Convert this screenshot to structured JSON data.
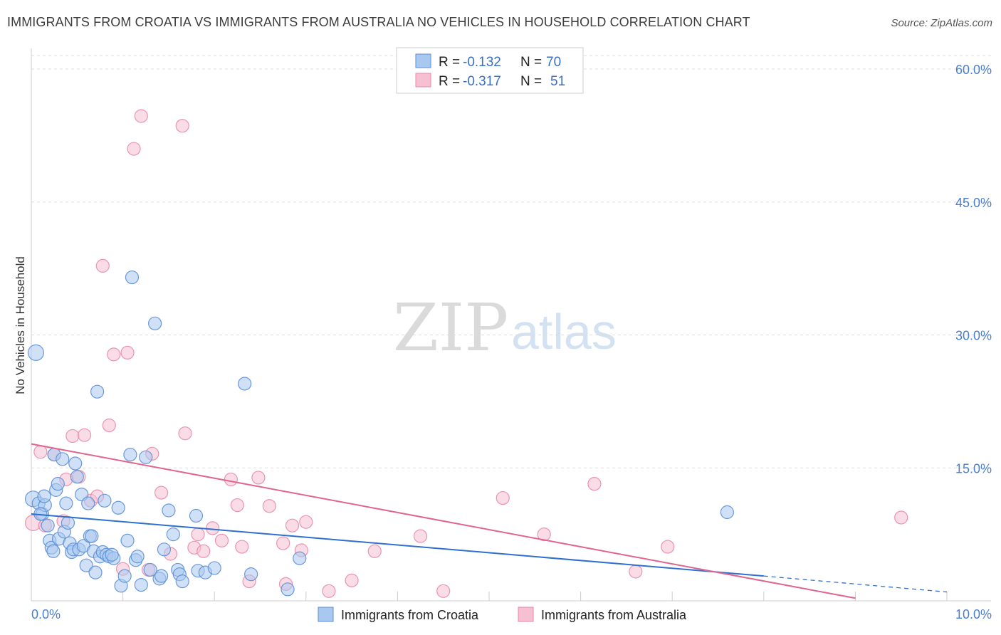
{
  "title": "IMMIGRANTS FROM CROATIA VS IMMIGRANTS FROM AUSTRALIA NO VEHICLES IN HOUSEHOLD CORRELATION CHART",
  "source": "Source: ZipAtlas.com",
  "watermark": {
    "zip": "ZIP",
    "atlas": "atlas"
  },
  "colors": {
    "croatia_fill": "#a9c8f0",
    "croatia_stroke": "#5b8fd6",
    "croatia_line": "#2e6fcf",
    "australia_fill": "#f6bfd2",
    "australia_stroke": "#e88aaa",
    "australia_line": "#e0648f",
    "grid": "#dddddd",
    "axis_text": "#4a7fd0"
  },
  "legend": {
    "croatia": {
      "r_label": "R =",
      "r_value": "-0.132",
      "n_label": "N =",
      "n_value": "70"
    },
    "australia": {
      "r_label": "R =",
      "r_value": "-0.317",
      "n_label": "N =",
      "n_value": "51"
    }
  },
  "bottom_legend": {
    "croatia": "Immigrants from Croatia",
    "australia": "Immigrants from Australia"
  },
  "chart_data": {
    "type": "scatter",
    "title": "IMMIGRANTS FROM CROATIA VS IMMIGRANTS FROM AUSTRALIA NO VEHICLES IN HOUSEHOLD CORRELATION CHART",
    "xlabel": "",
    "ylabel": "No Vehicles in Household",
    "xlim": [
      0,
      10
    ],
    "ylim": [
      0,
      62
    ],
    "x_tick_labels": [
      "0.0%",
      "10.0%"
    ],
    "y_ticks": [
      15,
      30,
      45,
      60
    ],
    "y_tick_labels": [
      "15.0%",
      "30.0%",
      "45.0%",
      "60.0%"
    ],
    "grid": true,
    "series": [
      {
        "name": "Immigrants from Croatia",
        "R": -0.132,
        "N": 70,
        "trend": {
          "x": [
            0,
            8.0
          ],
          "y": [
            9.8,
            2.8
          ]
        },
        "trend_dashed": {
          "x": [
            8.0,
            10.0
          ],
          "y": [
            2.8,
            1.0
          ]
        },
        "points": [
          [
            0.02,
            11.5
          ],
          [
            0.05,
            28.0
          ],
          [
            0.08,
            11.0
          ],
          [
            0.12,
            9.8
          ],
          [
            0.15,
            10.8
          ],
          [
            0.18,
            8.5
          ],
          [
            0.2,
            6.8
          ],
          [
            0.22,
            6.0
          ],
          [
            0.25,
            16.5
          ],
          [
            0.27,
            12.5
          ],
          [
            0.29,
            13.2
          ],
          [
            0.3,
            7.0
          ],
          [
            0.34,
            16.0
          ],
          [
            0.36,
            7.8
          ],
          [
            0.38,
            11.0
          ],
          [
            0.4,
            8.8
          ],
          [
            0.42,
            6.5
          ],
          [
            0.44,
            5.5
          ],
          [
            0.46,
            5.8
          ],
          [
            0.48,
            15.5
          ],
          [
            0.5,
            14.0
          ],
          [
            0.52,
            5.8
          ],
          [
            0.55,
            12.0
          ],
          [
            0.57,
            6.2
          ],
          [
            0.6,
            4.0
          ],
          [
            0.62,
            11.0
          ],
          [
            0.64,
            7.3
          ],
          [
            0.66,
            7.3
          ],
          [
            0.68,
            5.6
          ],
          [
            0.7,
            3.2
          ],
          [
            0.72,
            23.6
          ],
          [
            0.75,
            5.0
          ],
          [
            0.78,
            5.5
          ],
          [
            0.8,
            11.3
          ],
          [
            0.82,
            5.2
          ],
          [
            0.85,
            5.0
          ],
          [
            0.9,
            4.8
          ],
          [
            0.95,
            10.5
          ],
          [
            0.98,
            1.7
          ],
          [
            1.02,
            2.8
          ],
          [
            1.05,
            6.8
          ],
          [
            1.08,
            16.5
          ],
          [
            1.1,
            36.5
          ],
          [
            1.14,
            4.6
          ],
          [
            1.16,
            5.0
          ],
          [
            1.2,
            1.8
          ],
          [
            1.25,
            16.2
          ],
          [
            1.3,
            3.5
          ],
          [
            1.35,
            31.3
          ],
          [
            1.4,
            2.5
          ],
          [
            1.42,
            2.8
          ],
          [
            1.45,
            5.8
          ],
          [
            1.5,
            10.2
          ],
          [
            1.55,
            7.5
          ],
          [
            1.6,
            3.5
          ],
          [
            1.62,
            3.0
          ],
          [
            1.65,
            2.2
          ],
          [
            1.8,
            9.6
          ],
          [
            1.82,
            3.4
          ],
          [
            1.9,
            3.2
          ],
          [
            2.0,
            3.7
          ],
          [
            2.33,
            24.5
          ],
          [
            2.4,
            3.0
          ],
          [
            2.8,
            1.3
          ],
          [
            2.93,
            4.8
          ],
          [
            7.6,
            10.0
          ],
          [
            0.1,
            9.8
          ],
          [
            0.14,
            11.8
          ],
          [
            0.88,
            5.2
          ],
          [
            0.24,
            5.6
          ]
        ]
      },
      {
        "name": "Immigrants from Australia",
        "R": -0.317,
        "N": 51,
        "trend": {
          "x": [
            0,
            9.0
          ],
          "y": [
            17.7,
            0.3
          ]
        },
        "points": [
          [
            0.02,
            8.8
          ],
          [
            0.1,
            16.8
          ],
          [
            0.15,
            8.5
          ],
          [
            0.25,
            16.5
          ],
          [
            0.35,
            9.0
          ],
          [
            0.38,
            13.7
          ],
          [
            0.45,
            18.6
          ],
          [
            0.52,
            14.0
          ],
          [
            0.58,
            18.7
          ],
          [
            0.65,
            11.3
          ],
          [
            0.72,
            11.8
          ],
          [
            0.78,
            37.8
          ],
          [
            0.85,
            19.8
          ],
          [
            0.9,
            27.8
          ],
          [
            1.0,
            3.6
          ],
          [
            1.05,
            28.0
          ],
          [
            1.12,
            51.0
          ],
          [
            1.2,
            54.7
          ],
          [
            1.28,
            3.5
          ],
          [
            1.32,
            16.6
          ],
          [
            1.42,
            12.2
          ],
          [
            1.52,
            5.3
          ],
          [
            1.65,
            53.6
          ],
          [
            1.68,
            18.9
          ],
          [
            1.78,
            6.0
          ],
          [
            1.82,
            7.5
          ],
          [
            1.88,
            5.6
          ],
          [
            1.98,
            8.2
          ],
          [
            2.08,
            6.8
          ],
          [
            2.18,
            13.7
          ],
          [
            2.25,
            10.8
          ],
          [
            2.3,
            6.1
          ],
          [
            2.38,
            2.2
          ],
          [
            2.48,
            13.9
          ],
          [
            2.6,
            10.7
          ],
          [
            2.75,
            6.5
          ],
          [
            2.78,
            1.9
          ],
          [
            2.85,
            8.5
          ],
          [
            2.95,
            5.7
          ],
          [
            3.0,
            8.9
          ],
          [
            3.25,
            1.1
          ],
          [
            3.5,
            2.3
          ],
          [
            3.75,
            5.6
          ],
          [
            4.25,
            7.3
          ],
          [
            4.5,
            1.1
          ],
          [
            5.15,
            11.6
          ],
          [
            5.6,
            7.5
          ],
          [
            6.15,
            13.2
          ],
          [
            6.6,
            3.3
          ],
          [
            6.95,
            6.1
          ],
          [
            9.5,
            9.4
          ]
        ]
      }
    ]
  }
}
